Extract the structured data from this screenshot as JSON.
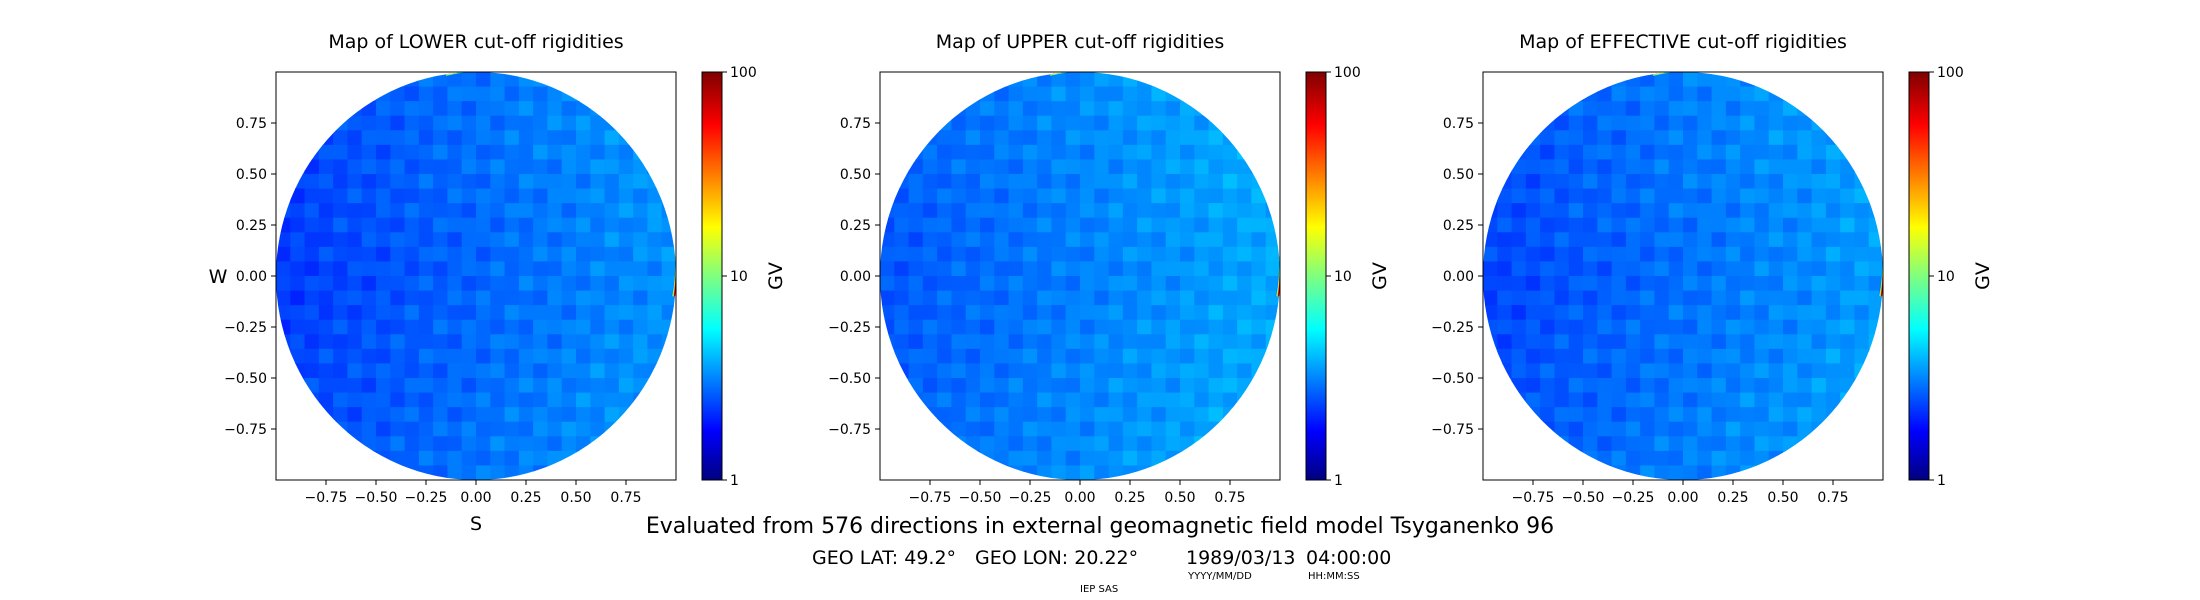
{
  "figure": {
    "caption": "Evaluated from 576 directions in external geomagnetic field model Tsyganenko 96",
    "geo_lat": "GEO LAT: 49.2°",
    "geo_lon": "GEO LON: 20.22°",
    "date": "1989/03/13",
    "time": "04:00:00",
    "date_format": "YYYY/MM/DD",
    "time_format": "HH:MM:SS",
    "institution": "IEP SAS"
  },
  "chart_data": [
    {
      "type": "heatmap",
      "title": "Map of LOWER cut-off rigidities",
      "xlabel": "S",
      "ylabel": "W",
      "xlim": [
        -1,
        1
      ],
      "ylim": [
        -1,
        1
      ],
      "xticks": [
        "−0.75",
        "−0.50",
        "−0.25",
        "0.00",
        "0.25",
        "0.50",
        "0.75"
      ],
      "yticks": [
        "0.75",
        "0.50",
        "0.25",
        "0.00",
        "−0.25",
        "−0.50",
        "−0.75"
      ],
      "colorbar": {
        "label": "GV",
        "scale": "log",
        "range": [
          1,
          100
        ],
        "ticks": [
          "1",
          "10",
          "100"
        ]
      },
      "field": {
        "min_gv": 2.0,
        "max_gv": 4.2,
        "rim_gv": 100
      }
    },
    {
      "type": "heatmap",
      "title": "Map of UPPER cut-off rigidities",
      "xlabel": "",
      "ylabel": "",
      "xlim": [
        -1,
        1
      ],
      "ylim": [
        -1,
        1
      ],
      "xticks": [
        "−0.75",
        "−0.50",
        "−0.25",
        "0.00",
        "0.25",
        "0.50",
        "0.75"
      ],
      "yticks": [
        "0.75",
        "0.50",
        "0.25",
        "0.00",
        "−0.25",
        "−0.50",
        "−0.75"
      ],
      "colorbar": {
        "label": "GV",
        "scale": "log",
        "range": [
          1,
          100
        ],
        "ticks": [
          "1",
          "10",
          "100"
        ]
      },
      "field": {
        "min_gv": 2.3,
        "max_gv": 4.6,
        "rim_gv": 100
      }
    },
    {
      "type": "heatmap",
      "title": "Map of EFFECTIVE cut-off rigidities",
      "xlabel": "",
      "ylabel": "",
      "xlim": [
        -1,
        1
      ],
      "ylim": [
        -1,
        1
      ],
      "xticks": [
        "−0.75",
        "−0.50",
        "−0.25",
        "0.00",
        "0.25",
        "0.50",
        "0.75"
      ],
      "yticks": [
        "0.75",
        "0.50",
        "0.25",
        "0.00",
        "−0.25",
        "−0.50",
        "−0.75"
      ],
      "colorbar": {
        "label": "GV",
        "scale": "log",
        "range": [
          1,
          100
        ],
        "ticks": [
          "1",
          "10",
          "100"
        ]
      },
      "field": {
        "min_gv": 2.1,
        "max_gv": 4.4,
        "rim_gv": 100
      }
    }
  ]
}
